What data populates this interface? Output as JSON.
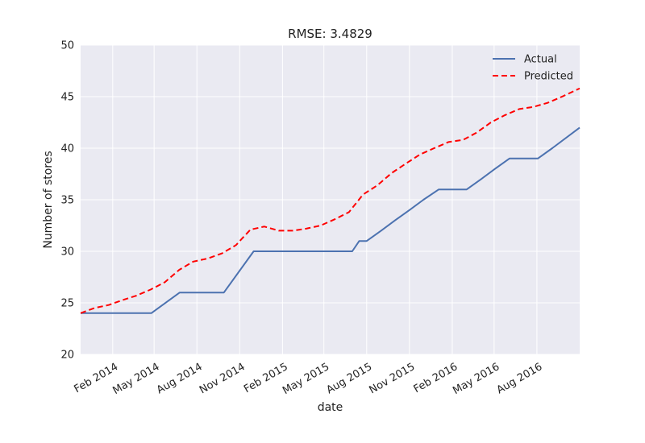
{
  "chart_data": {
    "type": "line",
    "title": "RMSE: 3.4829",
    "xlabel": "date",
    "ylabel": "Number of stores",
    "xlim": [
      "2013-11-24",
      "2016-11-01"
    ],
    "ylim": [
      20,
      50
    ],
    "yticks": [
      20,
      25,
      30,
      35,
      40,
      45,
      50
    ],
    "xticks": [
      {
        "date": "2014-02-01",
        "label": "Feb 2014"
      },
      {
        "date": "2014-05-01",
        "label": "May 2014"
      },
      {
        "date": "2014-08-01",
        "label": "Aug 2014"
      },
      {
        "date": "2014-11-01",
        "label": "Nov 2014"
      },
      {
        "date": "2015-02-01",
        "label": "Feb 2015"
      },
      {
        "date": "2015-05-01",
        "label": "May 2015"
      },
      {
        "date": "2015-08-01",
        "label": "Aug 2015"
      },
      {
        "date": "2015-11-01",
        "label": "Nov 2015"
      },
      {
        "date": "2016-02-01",
        "label": "Feb 2016"
      },
      {
        "date": "2016-05-01",
        "label": "May 2016"
      },
      {
        "date": "2016-08-01",
        "label": "Aug 2016"
      }
    ],
    "grid": true,
    "legend_position": "top-right",
    "series": [
      {
        "name": "Actual",
        "color": "#4c72b0",
        "style": "solid",
        "points": [
          [
            "2013-11-24",
            24
          ],
          [
            "2014-01-01",
            24
          ],
          [
            "2014-03-01",
            24
          ],
          [
            "2014-04-25",
            24
          ],
          [
            "2014-06-25",
            26
          ],
          [
            "2014-08-25",
            26
          ],
          [
            "2014-09-28",
            26
          ],
          [
            "2014-12-01",
            30
          ],
          [
            "2015-01-01",
            30
          ],
          [
            "2015-03-01",
            30
          ],
          [
            "2015-05-01",
            30
          ],
          [
            "2015-06-30",
            30
          ],
          [
            "2015-07-01",
            30
          ],
          [
            "2015-07-16",
            31
          ],
          [
            "2015-08-01",
            31
          ],
          [
            "2015-09-01",
            32
          ],
          [
            "2015-10-01",
            33
          ],
          [
            "2015-11-01",
            34
          ],
          [
            "2015-12-01",
            35
          ],
          [
            "2016-01-03",
            36
          ],
          [
            "2016-02-01",
            36
          ],
          [
            "2016-03-03",
            36
          ],
          [
            "2016-04-03",
            37
          ],
          [
            "2016-05-03",
            38
          ],
          [
            "2016-06-03",
            39
          ],
          [
            "2016-07-03",
            39
          ],
          [
            "2016-08-03",
            39
          ],
          [
            "2016-09-03",
            40
          ],
          [
            "2016-11-01",
            42
          ]
        ]
      },
      {
        "name": "Predicted",
        "color": "#ff0000",
        "style": "dashed",
        "points": [
          [
            "2013-11-24",
            24
          ],
          [
            "2013-12-24",
            24.5
          ],
          [
            "2014-01-24",
            24.8
          ],
          [
            "2014-02-24",
            25.3
          ],
          [
            "2014-03-24",
            25.7
          ],
          [
            "2014-04-24",
            26.3
          ],
          [
            "2014-05-24",
            27.0
          ],
          [
            "2014-06-24",
            28.2
          ],
          [
            "2014-07-24",
            29.0
          ],
          [
            "2014-08-24",
            29.3
          ],
          [
            "2014-09-24",
            29.8
          ],
          [
            "2014-10-24",
            30.6
          ],
          [
            "2014-11-24",
            32.1
          ],
          [
            "2014-12-24",
            32.4
          ],
          [
            "2015-01-24",
            32.0
          ],
          [
            "2015-02-24",
            32.0
          ],
          [
            "2015-03-24",
            32.2
          ],
          [
            "2015-04-24",
            32.5
          ],
          [
            "2015-05-24",
            33.1
          ],
          [
            "2015-06-24",
            33.8
          ],
          [
            "2015-07-24",
            35.5
          ],
          [
            "2015-08-24",
            36.4
          ],
          [
            "2015-09-24",
            37.6
          ],
          [
            "2015-10-24",
            38.5
          ],
          [
            "2015-11-24",
            39.4
          ],
          [
            "2015-12-24",
            40.0
          ],
          [
            "2016-01-24",
            40.6
          ],
          [
            "2016-02-24",
            40.8
          ],
          [
            "2016-03-24",
            41.5
          ],
          [
            "2016-04-24",
            42.5
          ],
          [
            "2016-05-24",
            43.2
          ],
          [
            "2016-06-24",
            43.8
          ],
          [
            "2016-07-24",
            44.0
          ],
          [
            "2016-08-24",
            44.4
          ],
          [
            "2016-09-24",
            45.0
          ],
          [
            "2016-11-01",
            45.8
          ]
        ]
      }
    ]
  }
}
